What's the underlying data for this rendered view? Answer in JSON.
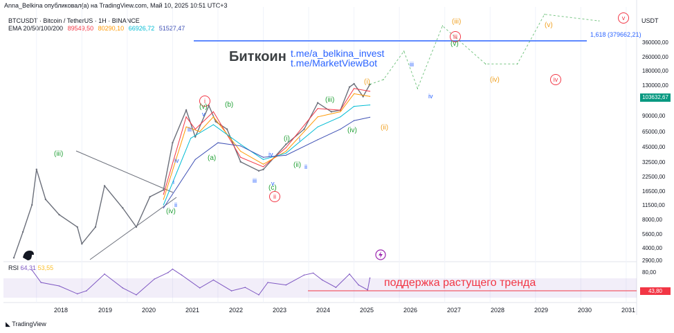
{
  "header": {
    "publisher": "Anna_Belkina опубликовал(а) на TradingView.com, Май 10, 2025 10:51 UTC+3",
    "symbol": "BTCUSDT · Bitcoin / TetherUS · 1H · BINANCE",
    "ema_label": "EMA 20/50/100/200",
    "ema_values": [
      "89549,50",
      "80290,10",
      "66926,72",
      "51527,47"
    ],
    "currency": "USDT"
  },
  "colors": {
    "ema20": "#f23645",
    "ema50": "#ff9800",
    "ema100": "#00bcd4",
    "ema200": "#3f51b5",
    "candles": "#6b6f7a",
    "wave_green": "#21a036",
    "wave_blue": "#2962ff",
    "wave_orange": "#f0a020",
    "wave_red": "#f23645",
    "rsi": "#7e57c2",
    "rsi_ma": "#fbc02d"
  },
  "annotations": {
    "title": "Биткоин",
    "link1": "t.me/a_belkina_invest",
    "link2": "t.me/MarketViewBot",
    "fib_label": "1,618 (379662,21)",
    "support_note": "поддержка растущего тренда"
  },
  "price_axis": {
    "labels": [
      "360000,00",
      "260000,00",
      "180000,00",
      "130000,00",
      "90000,00",
      "65000,00",
      "45000,00",
      "32500,00",
      "22500,00",
      "16500,00",
      "11500,00",
      "8000,00",
      "5600,00",
      "4000,00",
      "2900,00"
    ],
    "current_price": "103632,67"
  },
  "rsi": {
    "label": "RSI",
    "value": "64,31",
    "ma_value": "53,55",
    "axis_label": "80,00",
    "current": "43,80"
  },
  "time_axis": [
    "2018",
    "2019",
    "2020",
    "2021",
    "2022",
    "2023",
    "2024",
    "2025",
    "2026",
    "2027",
    "2028",
    "2029",
    "2030",
    "2031"
  ],
  "footer": {
    "brand": "TradingView"
  },
  "waves": [
    {
      "t": "(iii)",
      "c": "green"
    },
    {
      "t": "(iv)",
      "c": "green"
    },
    {
      "t": "i",
      "c": "red_circle"
    },
    {
      "t": "(v)",
      "c": "green"
    },
    {
      "t": "(b)",
      "c": "green"
    },
    {
      "t": "(a)",
      "c": "green"
    },
    {
      "t": "(c)",
      "c": "green"
    },
    {
      "t": "ii",
      "c": "red_circle"
    },
    {
      "t": "(i)",
      "c": "green"
    },
    {
      "t": "(ii)",
      "c": "green"
    },
    {
      "t": "(iii)",
      "c": "green"
    },
    {
      "t": "(iv)",
      "c": "green"
    },
    {
      "t": "(i)",
      "c": "orange"
    },
    {
      "t": "(ii)",
      "c": "orange"
    },
    {
      "t": "(iii)",
      "c": "orange"
    },
    {
      "t": "iii",
      "c": "red_circle"
    },
    {
      "t": "(v)",
      "c": "green"
    },
    {
      "t": "(iv)",
      "c": "orange"
    },
    {
      "t": "iv",
      "c": "red_circle"
    },
    {
      "t": "(v)",
      "c": "orange"
    },
    {
      "t": "v",
      "c": "red_circle"
    },
    {
      "t": "iii",
      "c": "blue"
    },
    {
      "t": "iv",
      "c": "blue"
    },
    {
      "t": "i",
      "c": "blue"
    },
    {
      "t": "ii",
      "c": "blue"
    },
    {
      "t": "iii",
      "c": "blue"
    },
    {
      "t": "v",
      "c": "blue"
    },
    {
      "t": "iv",
      "c": "blue"
    },
    {
      "t": "i",
      "c": "blue"
    },
    {
      "t": "ii",
      "c": "blue"
    },
    {
      "t": "iii",
      "c": "blue"
    },
    {
      "t": "iv",
      "c": "blue"
    },
    {
      "t": "v",
      "c": "blue"
    }
  ],
  "chart_data": {
    "type": "line",
    "title": "BTCUSDT · Bitcoin / TetherUS · 1H · BINANCE",
    "yscale": "log",
    "ylim": [
      2500,
      500000
    ],
    "xlim": [
      2017.5,
      2031.2
    ],
    "series": [
      {
        "name": "BTCUSDT close",
        "x": [
          2017.5,
          2017.7,
          2017.9,
          2018.0,
          2018.2,
          2018.5,
          2018.9,
          2019.0,
          2019.3,
          2019.5,
          2019.9,
          2020.2,
          2020.5,
          2020.8,
          2021.0,
          2021.3,
          2021.5,
          2021.8,
          2021.95,
          2022.2,
          2022.5,
          2022.9,
          2023.0,
          2023.5,
          2023.9,
          2024.2,
          2024.5,
          2024.7,
          2024.9,
          2025.0,
          2025.2,
          2025.35
        ],
        "values": [
          2600,
          4500,
          8000,
          17000,
          9000,
          6500,
          5000,
          3500,
          5000,
          12000,
          7500,
          5000,
          9500,
          11000,
          30000,
          60000,
          34000,
          66000,
          47000,
          40000,
          20000,
          16500,
          17000,
          29000,
          40000,
          70000,
          58000,
          60000,
          98000,
          105000,
          80000,
          103632
        ]
      },
      {
        "name": "EMA 20",
        "x": [
          2020.8,
          2021.3,
          2021.5,
          2021.9,
          2022.5,
          2023.0,
          2023.5,
          2024.2,
          2024.7,
          2025.0,
          2025.35
        ],
        "values": [
          10000,
          52000,
          40000,
          58000,
          22000,
          18000,
          27000,
          62000,
          60000,
          95000,
          89550
        ]
      },
      {
        "name": "EMA 50",
        "x": [
          2020.8,
          2021.3,
          2021.6,
          2021.9,
          2022.5,
          2023.0,
          2023.5,
          2024.2,
          2024.7,
          2025.0,
          2025.35
        ],
        "values": [
          9000,
          42000,
          38000,
          52000,
          25000,
          19000,
          25000,
          52000,
          58000,
          85000,
          80290
        ]
      },
      {
        "name": "EMA 100",
        "x": [
          2020.8,
          2021.4,
          2021.9,
          2022.5,
          2023.0,
          2023.5,
          2024.2,
          2024.7,
          2025.0,
          2025.35
        ],
        "values": [
          8000,
          33000,
          44000,
          29000,
          21000,
          24000,
          42000,
          52000,
          65000,
          66927
        ]
      },
      {
        "name": "EMA 200",
        "x": [
          2020.8,
          2021.5,
          2022.0,
          2022.5,
          2023.0,
          2023.5,
          2024.2,
          2024.7,
          2025.0,
          2025.35
        ],
        "values": [
          7500,
          21000,
          30000,
          28000,
          22000,
          23000,
          32000,
          40000,
          48000,
          51527
        ]
      },
      {
        "name": "Target path",
        "x": [
          2025.35,
          2025.65,
          2026.1,
          2026.4,
          2026.95,
          2027.9,
          2028.6,
          2029.2,
          2030.4
        ],
        "values": [
          103632,
          115000,
          210000,
          95000,
          360000,
          160000,
          160000,
          460000,
          400000
        ]
      }
    ],
    "rsi_series": {
      "name": "RSI",
      "ylim": [
        20,
        90
      ],
      "x": [
        2017.9,
        2018.1,
        2018.5,
        2018.9,
        2019.1,
        2019.5,
        2019.9,
        2020.2,
        2020.6,
        2020.9,
        2021.0,
        2021.2,
        2021.6,
        2021.9,
        2022.3,
        2022.6,
        2022.9,
        2023.1,
        2023.5,
        2023.9,
        2024.1,
        2024.3,
        2024.6,
        2024.9,
        2025.1,
        2025.3,
        2025.35
      ],
      "values": [
        80,
        55,
        48,
        32,
        38,
        72,
        44,
        30,
        62,
        75,
        82,
        70,
        44,
        60,
        38,
        45,
        30,
        55,
        50,
        70,
        74,
        60,
        45,
        72,
        50,
        40,
        64
      ]
    }
  }
}
